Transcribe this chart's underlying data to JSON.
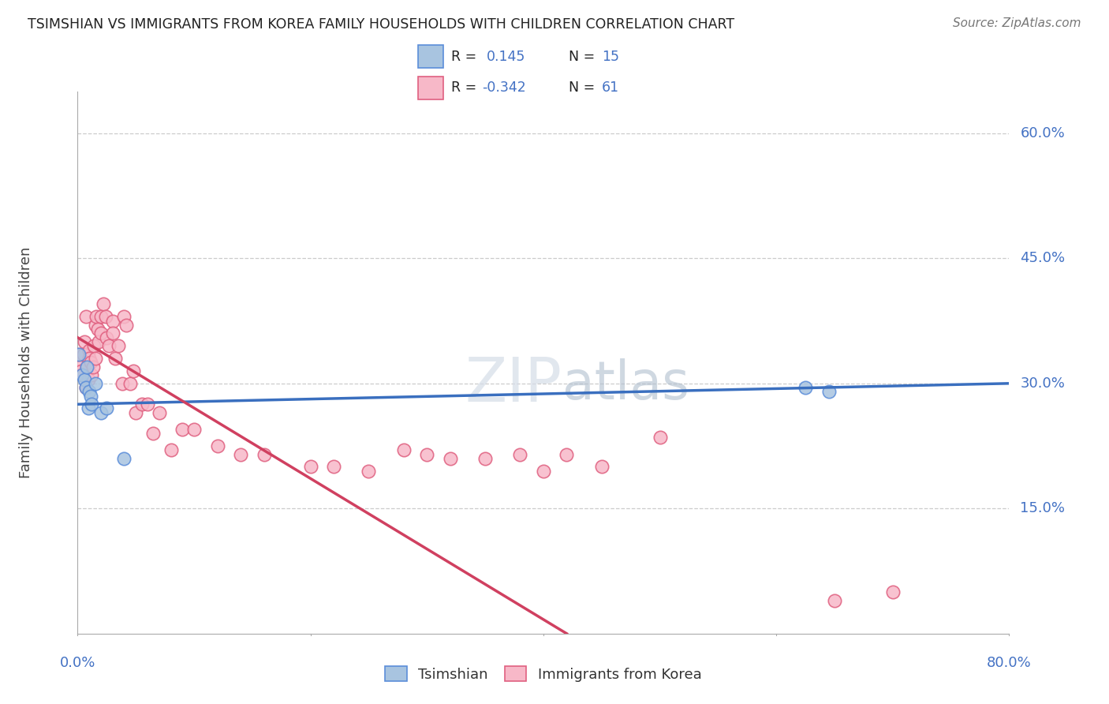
{
  "title": "TSIMSHIAN VS IMMIGRANTS FROM KOREA FAMILY HOUSEHOLDS WITH CHILDREN CORRELATION CHART",
  "source": "Source: ZipAtlas.com",
  "ylabel": "Family Households with Children",
  "xlim": [
    0.0,
    0.8
  ],
  "ylim": [
    0.0,
    0.65
  ],
  "ytick_values": [
    0.15,
    0.3,
    0.45,
    0.6
  ],
  "ytick_labels": [
    "15.0%",
    "30.0%",
    "45.0%",
    "60.0%"
  ],
  "tsimshian_color_fill": "#a8c4e0",
  "tsimshian_color_edge": "#5b8dd9",
  "korea_color_fill": "#f7b8c8",
  "korea_color_edge": "#e06080",
  "line_blue": "#3a6fbf",
  "line_pink": "#d04060",
  "legend_r1_val": "0.145",
  "legend_n1_val": "15",
  "legend_r2_val": "-0.342",
  "legend_n2_val": "61",
  "tsimshian_x": [
    0.001,
    0.004,
    0.006,
    0.007,
    0.008,
    0.009,
    0.01,
    0.011,
    0.012,
    0.015,
    0.02,
    0.025,
    0.04,
    0.625,
    0.645
  ],
  "tsimshian_y": [
    0.335,
    0.31,
    0.305,
    0.295,
    0.32,
    0.27,
    0.29,
    0.285,
    0.275,
    0.3,
    0.265,
    0.27,
    0.21,
    0.295,
    0.29
  ],
  "korea_x": [
    0.001,
    0.002,
    0.003,
    0.004,
    0.005,
    0.006,
    0.007,
    0.007,
    0.008,
    0.009,
    0.01,
    0.01,
    0.011,
    0.012,
    0.013,
    0.014,
    0.015,
    0.015,
    0.016,
    0.017,
    0.018,
    0.02,
    0.02,
    0.022,
    0.024,
    0.025,
    0.027,
    0.03,
    0.03,
    0.032,
    0.035,
    0.038,
    0.04,
    0.042,
    0.045,
    0.048,
    0.05,
    0.055,
    0.06,
    0.065,
    0.07,
    0.08,
    0.09,
    0.1,
    0.12,
    0.14,
    0.16,
    0.2,
    0.22,
    0.25,
    0.28,
    0.3,
    0.32,
    0.35,
    0.38,
    0.4,
    0.42,
    0.45,
    0.5,
    0.65,
    0.7
  ],
  "korea_y": [
    0.335,
    0.32,
    0.315,
    0.31,
    0.335,
    0.35,
    0.38,
    0.295,
    0.32,
    0.305,
    0.34,
    0.33,
    0.325,
    0.31,
    0.32,
    0.345,
    0.37,
    0.33,
    0.38,
    0.365,
    0.35,
    0.38,
    0.36,
    0.395,
    0.38,
    0.355,
    0.345,
    0.375,
    0.36,
    0.33,
    0.345,
    0.3,
    0.38,
    0.37,
    0.3,
    0.315,
    0.265,
    0.275,
    0.275,
    0.24,
    0.265,
    0.22,
    0.245,
    0.245,
    0.225,
    0.215,
    0.215,
    0.2,
    0.2,
    0.195,
    0.22,
    0.215,
    0.21,
    0.21,
    0.215,
    0.195,
    0.215,
    0.2,
    0.235,
    0.04,
    0.05
  ]
}
